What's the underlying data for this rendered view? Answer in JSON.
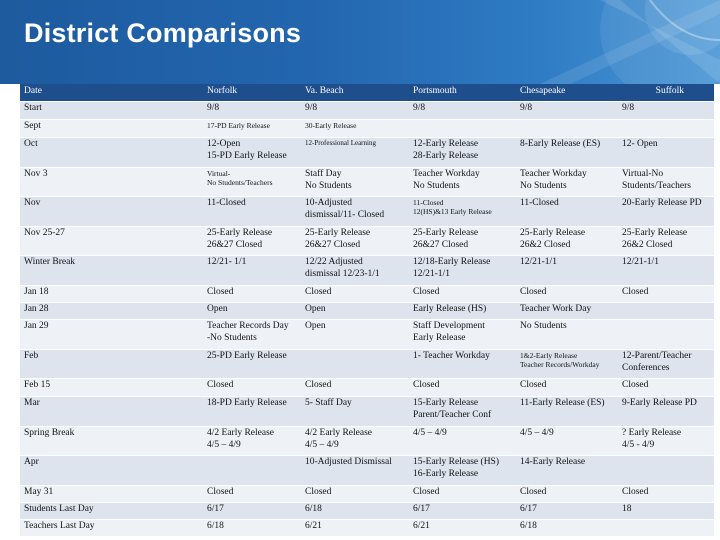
{
  "slide": {
    "title": "District Comparisons"
  },
  "table": {
    "headers": [
      "Date",
      "Norfolk",
      "Va. Beach",
      "Portsmouth",
      "Chesapeake",
      "Suffolk"
    ],
    "rows": [
      {
        "h": 18,
        "cells": [
          [
            "Start"
          ],
          [
            "9/8"
          ],
          [
            "9/8"
          ],
          [
            "9/8"
          ],
          [
            "9/8"
          ],
          [
            "9/8"
          ]
        ]
      },
      {
        "h": 18,
        "cells": [
          [
            "Sept"
          ],
          [
            "17-PD Early Release"
          ],
          [
            "30-Early Release"
          ],
          [
            ""
          ],
          [
            ""
          ],
          [
            ""
          ]
        ]
      },
      {
        "h": 30,
        "cells": [
          [
            "Oct"
          ],
          [
            "12-Open",
            "15-PD Early Release"
          ],
          [
            "12-Professional Learning"
          ],
          [
            "12-Early Release",
            "28-Early Release"
          ],
          [
            "8-Early Release (ES)"
          ],
          [
            "12- Open"
          ]
        ]
      },
      {
        "h": 29,
        "cells": [
          [
            "Nov 3"
          ],
          [
            "Virtual-",
            "No Students/Teachers"
          ],
          [
            "Staff Day",
            "No Students"
          ],
          [
            "Teacher Workday",
            "No Students"
          ],
          [
            "Teacher Workday",
            "No Students"
          ],
          [
            "Virtual-No",
            "Students/Teachers"
          ]
        ]
      },
      {
        "h": 30,
        "cells": [
          [
            "Nov"
          ],
          [
            "11-Closed"
          ],
          [
            "10-Adjusted",
            "dismissal/11- Closed"
          ],
          [
            "11-Closed",
            "12(HS)&13 Early Release"
          ],
          [
            "11-Closed"
          ],
          [
            "20-Early Release PD"
          ]
        ]
      },
      {
        "h": 29,
        "cells": [
          [
            "Nov 25-27"
          ],
          [
            "25-Early Release",
            "26&27 Closed"
          ],
          [
            "25-Early Release",
            "26&27 Closed"
          ],
          [
            "25-Early Release",
            "26&27 Closed"
          ],
          [
            "25-Early Release",
            "26&2 Closed"
          ],
          [
            "25-Early Release",
            "26&2 Closed"
          ]
        ]
      },
      {
        "h": 30,
        "cells": [
          [
            "Winter Break"
          ],
          [
            "12/21- 1/1"
          ],
          [
            "12/22 Adjusted",
            "dismissal 12/23-1/1"
          ],
          [
            "12/18-Early Release",
            "12/21-1/1"
          ],
          [
            "12/21-1/1"
          ],
          [
            "12/21-1/1"
          ]
        ]
      },
      {
        "h": 17,
        "cells": [
          [
            "Jan 18"
          ],
          [
            "Closed"
          ],
          [
            "Closed"
          ],
          [
            "Closed"
          ],
          [
            "Closed"
          ],
          [
            "Closed"
          ]
        ]
      },
      {
        "h": 17,
        "cells": [
          [
            "Jan 28"
          ],
          [
            "Open"
          ],
          [
            "Open"
          ],
          [
            "Early Release (HS)"
          ],
          [
            "Teacher Work Day"
          ],
          [
            ""
          ]
        ]
      },
      {
        "h": 30,
        "cells": [
          [
            "Jan 29"
          ],
          [
            "Teacher Records Day",
            "-No Students"
          ],
          [
            "Open"
          ],
          [
            "Staff Development",
            "Early Release"
          ],
          [
            "No Students"
          ],
          [
            ""
          ]
        ]
      },
      {
        "h": 29,
        "cells": [
          [
            "Feb"
          ],
          [
            "25-PD Early Release"
          ],
          [
            ""
          ],
          [
            "1- Teacher Workday"
          ],
          [
            "1&2-Early Release",
            "Teacher Records/Workday"
          ],
          [
            "12-Parent/Teacher",
            "Conferences"
          ]
        ]
      },
      {
        "h": 18,
        "cells": [
          [
            "Feb 15"
          ],
          [
            "Closed"
          ],
          [
            "Closed"
          ],
          [
            "Closed"
          ],
          [
            "Closed"
          ],
          [
            "Closed"
          ]
        ]
      },
      {
        "h": 30,
        "cells": [
          [
            "Mar"
          ],
          [
            "18-PD Early Release"
          ],
          [
            "5- Staff Day"
          ],
          [
            "15-Early Release",
            "Parent/Teacher Conf"
          ],
          [
            "11-Early Release (ES)"
          ],
          [
            "9-Early Release PD"
          ]
        ]
      },
      {
        "h": 29,
        "cells": [
          [
            "Spring Break"
          ],
          [
            "4/2 Early Release",
            "4/5 – 4/9"
          ],
          [
            "4/2 Early Release",
            "4/5 – 4/9"
          ],
          [
            "4/5 – 4/9"
          ],
          [
            "4/5 – 4/9"
          ],
          [
            "? Early Release",
            "4/5 - 4/9"
          ]
        ]
      },
      {
        "h": 30,
        "cells": [
          [
            "Apr"
          ],
          [
            ""
          ],
          [
            "10-Adjusted Dismissal"
          ],
          [
            "15-Early Release (HS)",
            "16-Early Release"
          ],
          [
            "14-Early Release"
          ],
          [
            ""
          ]
        ]
      },
      {
        "h": 17,
        "cells": [
          [
            "May 31"
          ],
          [
            "Closed"
          ],
          [
            "Closed"
          ],
          [
            "Closed"
          ],
          [
            "Closed"
          ],
          [
            "Closed"
          ]
        ]
      },
      {
        "h": 17,
        "cells": [
          [
            "Students Last Day"
          ],
          [
            "6/17"
          ],
          [
            "6/18"
          ],
          [
            "6/17"
          ],
          [
            "6/17"
          ],
          [
            "18"
          ]
        ]
      },
      {
        "h": 17,
        "cells": [
          [
            "Teachers Last Day"
          ],
          [
            "6/18"
          ],
          [
            "6/21"
          ],
          [
            "6/21"
          ],
          [
            "6/18"
          ],
          [
            ""
          ]
        ]
      }
    ],
    "small_cells": [
      "1.1",
      "1.2",
      "3.1",
      "4.3",
      "10.4"
    ],
    "tiny_cells": [
      "2.2"
    ]
  }
}
